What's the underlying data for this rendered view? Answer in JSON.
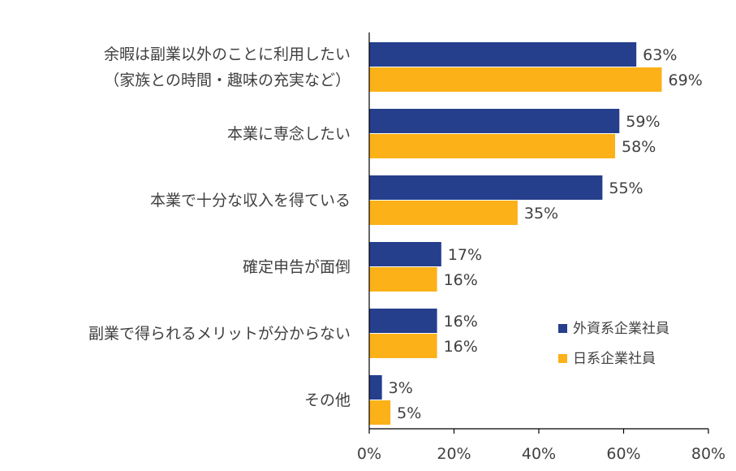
{
  "chart_data": {
    "type": "bar",
    "orientation": "horizontal",
    "categories": [
      [
        "余暇は副業以外のことに利用したい",
        "（家族との時間・趣味の充実など）"
      ],
      [
        "本業に専念したい"
      ],
      [
        "本業で十分な収入を得ている"
      ],
      [
        "確定申告が面倒"
      ],
      [
        "副業で得られるメリットが分からない"
      ],
      [
        "その他"
      ]
    ],
    "series": [
      {
        "name": "外資系企業社員",
        "color": "#263f8c",
        "values": [
          63,
          59,
          55,
          17,
          16,
          3
        ]
      },
      {
        "name": "日系企業社員",
        "color": "#fbb117",
        "values": [
          69,
          58,
          35,
          16,
          16,
          5
        ]
      }
    ],
    "value_suffix": "%",
    "xlim": [
      0,
      80
    ],
    "xticks": [
      0,
      20,
      40,
      60,
      80
    ],
    "xtick_labels": [
      "0%",
      "20%",
      "40%",
      "60%",
      "80%"
    ],
    "grid": false,
    "legend_position": "bottom-right"
  }
}
